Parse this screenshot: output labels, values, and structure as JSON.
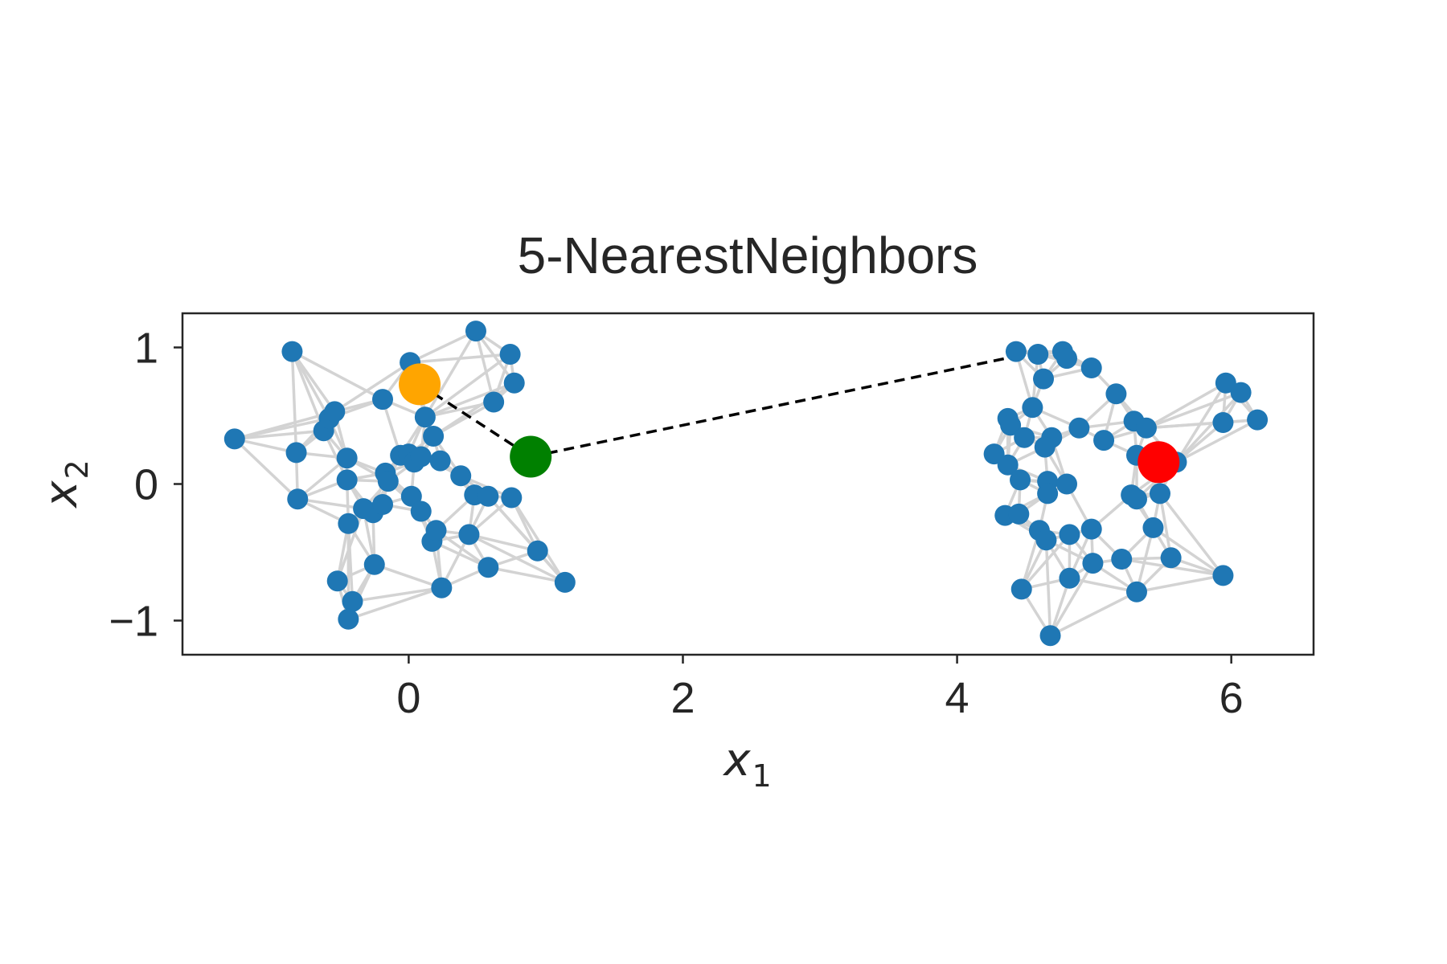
{
  "chart_data": {
    "type": "scatter",
    "title": "5-NearestNeighbors",
    "xlabel": "x",
    "xlabel_sub": "1",
    "ylabel": "x",
    "ylabel_sub": "2",
    "xlim": [
      -1.65,
      6.6
    ],
    "ylim": [
      -1.25,
      1.25
    ],
    "xticks": [
      0,
      2,
      4,
      6
    ],
    "yticks": [
      -1,
      0,
      1
    ],
    "xtick_labels": [
      "0",
      "2",
      "4",
      "6"
    ],
    "ytick_labels": [
      "−1",
      "0",
      "1"
    ],
    "grid": false,
    "k_neighbors": 5,
    "colors": {
      "points": "#1f77b4",
      "edges": "#d3d3d3",
      "path": "#000000",
      "start": "#ffa500",
      "middle": "#008000",
      "end": "#ff0000"
    },
    "points": [
      [
        -0.85,
        0.97
      ],
      [
        -1.27,
        0.33
      ],
      [
        -0.82,
        0.23
      ],
      [
        -0.81,
        -0.11
      ],
      [
        -0.62,
        0.39
      ],
      [
        -0.58,
        0.48
      ],
      [
        -0.54,
        0.53
      ],
      [
        -0.45,
        0.19
      ],
      [
        -0.45,
        0.03
      ],
      [
        -0.44,
        -0.29
      ],
      [
        -0.52,
        -0.71
      ],
      [
        -0.41,
        -0.86
      ],
      [
        -0.44,
        -0.99
      ],
      [
        -0.25,
        -0.59
      ],
      [
        -0.33,
        -0.18
      ],
      [
        -0.26,
        -0.21
      ],
      [
        -0.19,
        -0.15
      ],
      [
        -0.19,
        0.62
      ],
      [
        -0.17,
        0.08
      ],
      [
        -0.15,
        0.02
      ],
      [
        -0.06,
        0.21
      ],
      [
        0.0,
        0.22
      ],
      [
        0.02,
        -0.09
      ],
      [
        0.04,
        0.16
      ],
      [
        0.09,
        0.2
      ],
      [
        0.09,
        -0.2
      ],
      [
        0.12,
        0.49
      ],
      [
        0.18,
        0.35
      ],
      [
        0.17,
        -0.42
      ],
      [
        0.2,
        -0.34
      ],
      [
        0.23,
        0.17
      ],
      [
        0.24,
        -0.76
      ],
      [
        0.38,
        0.06
      ],
      [
        0.44,
        -0.37
      ],
      [
        0.48,
        -0.08
      ],
      [
        0.49,
        1.12
      ],
      [
        0.58,
        -0.09
      ],
      [
        0.58,
        -0.61
      ],
      [
        0.62,
        0.6
      ],
      [
        0.74,
        0.95
      ],
      [
        0.75,
        -0.1
      ],
      [
        0.77,
        0.74
      ],
      [
        0.94,
        -0.49
      ],
      [
        1.14,
        -0.72
      ],
      [
        0.01,
        0.89
      ],
      [
        4.43,
        0.97
      ],
      [
        4.59,
        0.95
      ],
      [
        4.63,
        0.77
      ],
      [
        4.77,
        0.97
      ],
      [
        4.8,
        0.92
      ],
      [
        4.98,
        0.85
      ],
      [
        5.16,
        0.66
      ],
      [
        4.55,
        0.56
      ],
      [
        4.37,
        0.48
      ],
      [
        4.39,
        0.43
      ],
      [
        4.49,
        0.34
      ],
      [
        4.69,
        0.34
      ],
      [
        4.64,
        0.27
      ],
      [
        4.89,
        0.41
      ],
      [
        5.07,
        0.32
      ],
      [
        5.29,
        0.46
      ],
      [
        5.38,
        0.41
      ],
      [
        5.31,
        0.21
      ],
      [
        5.6,
        0.16
      ],
      [
        4.27,
        0.22
      ],
      [
        4.37,
        0.14
      ],
      [
        4.46,
        0.03
      ],
      [
        4.66,
        0.02
      ],
      [
        4.8,
        0.0
      ],
      [
        4.66,
        -0.07
      ],
      [
        5.27,
        -0.08
      ],
      [
        5.31,
        -0.11
      ],
      [
        5.48,
        -0.07
      ],
      [
        4.35,
        -0.23
      ],
      [
        4.45,
        -0.22
      ],
      [
        4.6,
        -0.34
      ],
      [
        4.65,
        -0.41
      ],
      [
        4.82,
        -0.37
      ],
      [
        4.98,
        -0.33
      ],
      [
        5.43,
        -0.32
      ],
      [
        4.99,
        -0.58
      ],
      [
        5.2,
        -0.55
      ],
      [
        5.56,
        -0.54
      ],
      [
        4.82,
        -0.69
      ],
      [
        4.47,
        -0.77
      ],
      [
        5.31,
        -0.79
      ],
      [
        5.94,
        -0.67
      ],
      [
        4.68,
        -1.11
      ],
      [
        5.96,
        0.74
      ],
      [
        6.07,
        0.67
      ],
      [
        6.19,
        0.47
      ],
      [
        5.94,
        0.45
      ]
    ],
    "start_point": [
      0.08,
      0.73
    ],
    "middle_point": [
      0.89,
      0.2
    ],
    "end_point": [
      5.47,
      0.16
    ],
    "path_via": [
      4.5,
      0.95
    ]
  }
}
